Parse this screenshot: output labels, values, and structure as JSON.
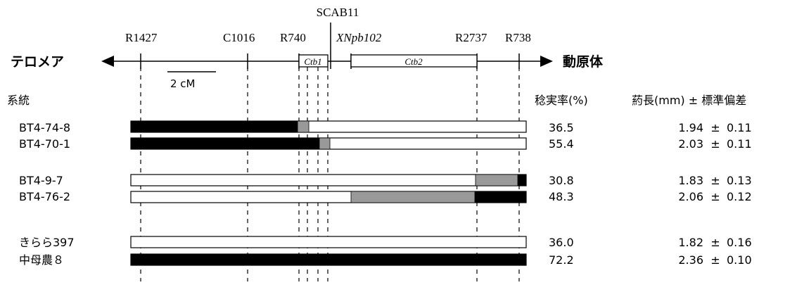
{
  "markers": {
    "scab11": "SCAB11",
    "r1427": "R1427",
    "c1016": "C1016",
    "r740": "R740",
    "xnpb102": "XNpb102",
    "r2737": "R2737",
    "r738": "R738"
  },
  "axis": {
    "left_label": "テロメア",
    "right_label": "動原体"
  },
  "genes": {
    "ctb1": "Ctb1",
    "ctb2": "Ctb2"
  },
  "scale_label": "2 cM",
  "headers": {
    "line": "系統",
    "fertility": "稔実率(%)",
    "anther": "葯長(mm) ± 標準偏差"
  },
  "rows": [
    {
      "name": "BT4-74-8",
      "fertility": "36.5",
      "mean": "1.94",
      "pm": "±",
      "sd": "0.11"
    },
    {
      "name": "BT4-70-1",
      "fertility": "55.4",
      "mean": "2.03",
      "pm": "±",
      "sd": "0.11"
    },
    {
      "name": "BT4-9-7",
      "fertility": "30.8",
      "mean": "1.83",
      "pm": "±",
      "sd": "0.13"
    },
    {
      "name": "BT4-76-2",
      "fertility": "48.3",
      "mean": "2.06",
      "pm": "±",
      "sd": "0.12"
    },
    {
      "name": "きらら397",
      "fertility": "36.0",
      "mean": "1.82",
      "pm": "±",
      "sd": "0.16"
    },
    {
      "name": "中母農８",
      "fertility": "72.2",
      "mean": "2.36",
      "pm": "±",
      "sd": "0.10"
    }
  ],
  "colors": {
    "black": "#000000",
    "gray": "#999999",
    "white": "#ffffff"
  }
}
